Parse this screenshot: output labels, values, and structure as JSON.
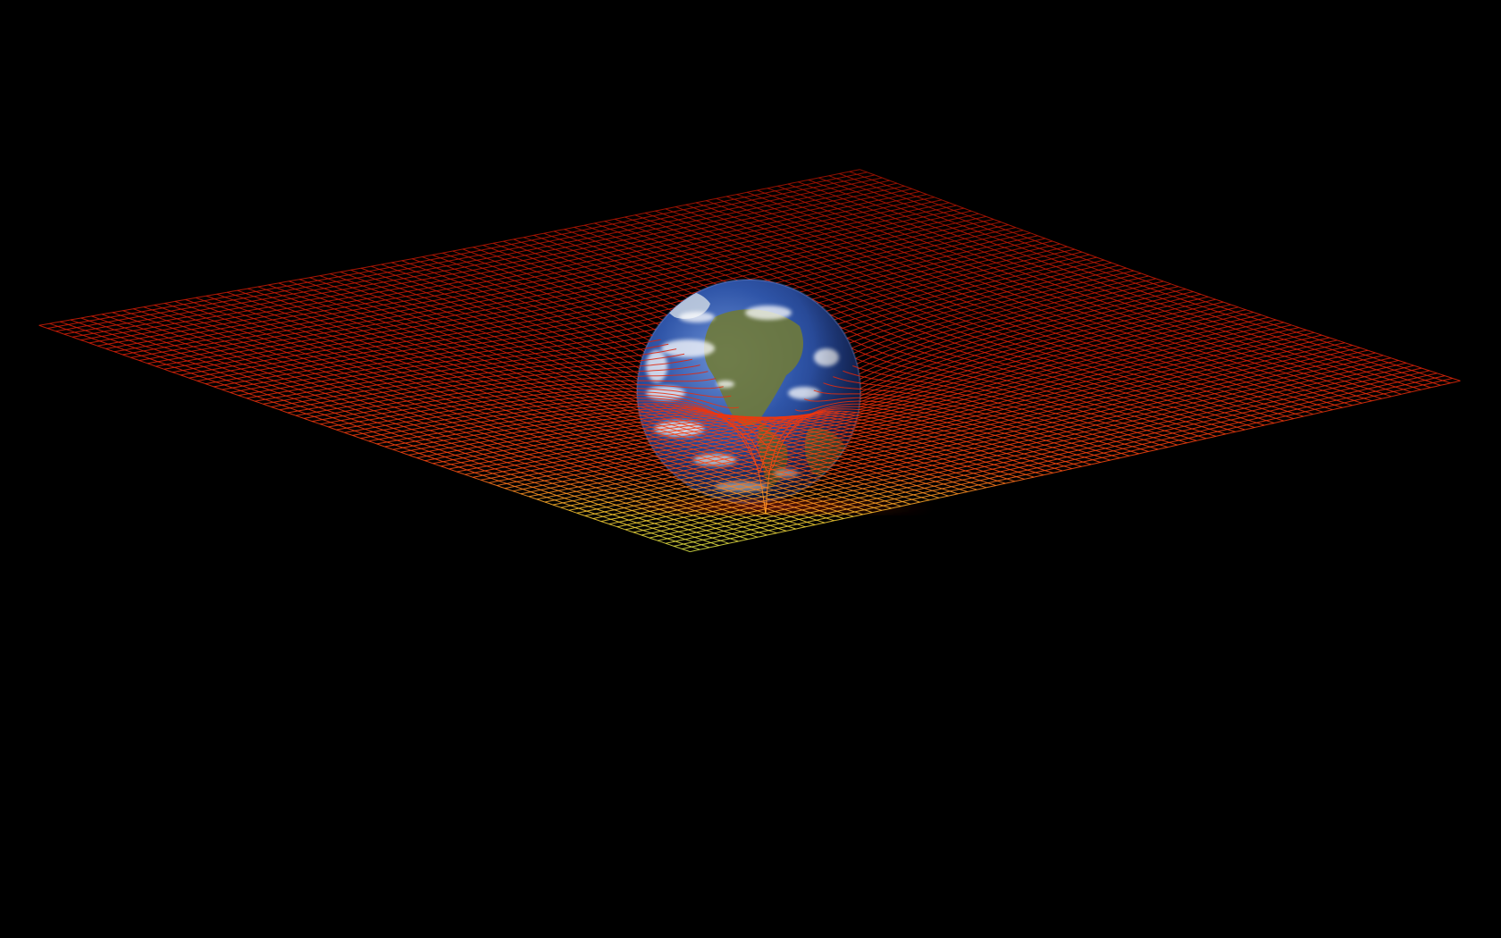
{
  "scene": {
    "background_color": "#000000",
    "subject": "earth-globe",
    "mesh": {
      "rim_color": "#d81800",
      "mid_color": "#ffd23a",
      "lower_color": "#7fe070",
      "well_color": "#3fb8e0",
      "bottom_color": "#1c34c8"
    },
    "earth": {
      "ocean_color": "#2c4fa0",
      "land_color": "#6b7a3c",
      "cloud_color": "#ffffff"
    }
  }
}
